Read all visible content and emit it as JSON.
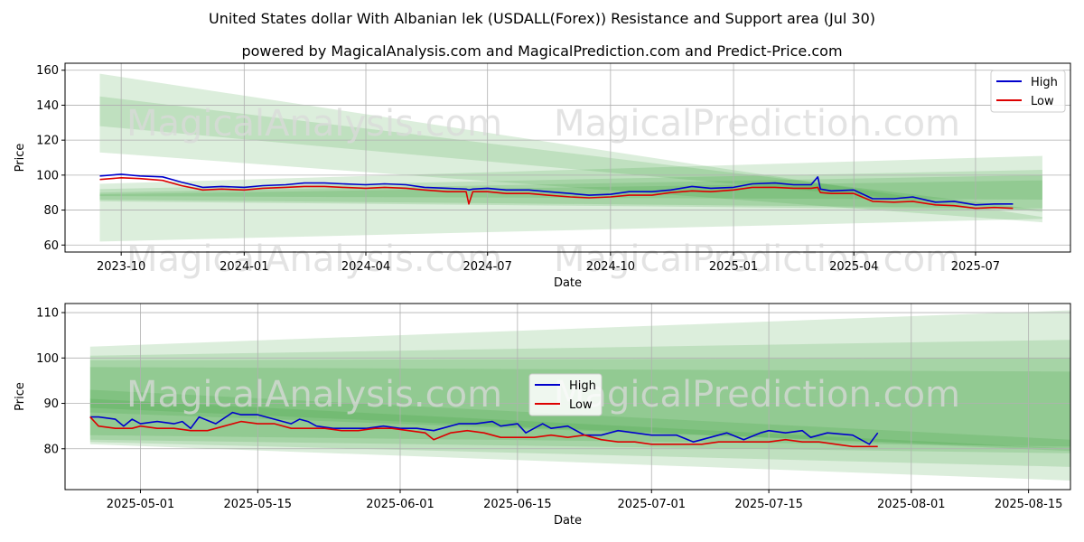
{
  "title": "United States dollar With Albanian lek (USDALL(Forex)) Resistance and Support area (Jul 30)",
  "subtitle": "powered by MagicalAnalysis.com and MagicalPrediction.com and Predict-Price.com",
  "watermarks": [
    "MagicalAnalysis.com",
    "MagicalPrediction.com"
  ],
  "colors": {
    "high": "#0000cc",
    "low": "#dd0000",
    "band": "#2e9a2e",
    "grid": "#b0b0b0",
    "watermark": "#d9d9d9"
  },
  "chart_data": [
    {
      "type": "line",
      "xlabel": "Date",
      "ylabel": "Price",
      "grid": true,
      "legend": {
        "placement": "top-right",
        "entries": [
          "High",
          "Low"
        ]
      },
      "xlim": [
        "2023-08-20",
        "2025-09-10"
      ],
      "ylim": [
        56,
        164
      ],
      "x_ticks": [
        {
          "date": "2023-10-01",
          "label": "2023-10"
        },
        {
          "date": "2024-01-01",
          "label": "2024-01"
        },
        {
          "date": "2024-04-01",
          "label": "2024-04"
        },
        {
          "date": "2024-07-01",
          "label": "2024-07"
        },
        {
          "date": "2024-10-01",
          "label": "2024-10"
        },
        {
          "date": "2025-01-01",
          "label": "2025-01"
        },
        {
          "date": "2025-04-01",
          "label": "2025-04"
        },
        {
          "date": "2025-07-01",
          "label": "2025-07"
        }
      ],
      "y_ticks": [
        60,
        80,
        100,
        120,
        140,
        160
      ],
      "series": [
        {
          "name": "High",
          "x": [
            "2023-09-15",
            "2023-10-01",
            "2023-10-15",
            "2023-11-01",
            "2023-11-15",
            "2023-12-01",
            "2023-12-15",
            "2024-01-01",
            "2024-01-15",
            "2024-02-01",
            "2024-02-15",
            "2024-03-01",
            "2024-03-15",
            "2024-04-01",
            "2024-04-15",
            "2024-05-01",
            "2024-05-15",
            "2024-06-01",
            "2024-06-15",
            "2024-06-17",
            "2024-06-20",
            "2024-07-01",
            "2024-07-15",
            "2024-08-01",
            "2024-08-15",
            "2024-09-01",
            "2024-09-15",
            "2024-10-01",
            "2024-10-15",
            "2024-11-01",
            "2024-11-15",
            "2024-12-01",
            "2024-12-15",
            "2025-01-01",
            "2025-01-15",
            "2025-02-01",
            "2025-02-15",
            "2025-02-28",
            "2025-03-05",
            "2025-03-07",
            "2025-03-15",
            "2025-04-01",
            "2025-04-15",
            "2025-05-01",
            "2025-05-15",
            "2025-06-01",
            "2025-06-15",
            "2025-07-01",
            "2025-07-15",
            "2025-07-29"
          ],
          "y": [
            99.5,
            100.5,
            99.5,
            99,
            96,
            93,
            93.5,
            93,
            94,
            94.5,
            95.5,
            95.5,
            95,
            94.5,
            95,
            94.5,
            93,
            92.5,
            92,
            91.5,
            92,
            92.5,
            91.5,
            91.5,
            90.5,
            89.5,
            88.5,
            89,
            90.5,
            90.5,
            91.5,
            93.5,
            92.5,
            93,
            95,
            95.5,
            94.5,
            94.5,
            99,
            92,
            91,
            91.5,
            86.5,
            86.5,
            87.5,
            84.5,
            85,
            83,
            83.5,
            83.5
          ]
        },
        {
          "name": "Low",
          "x": [
            "2023-09-15",
            "2023-10-01",
            "2023-10-15",
            "2023-11-01",
            "2023-11-15",
            "2023-12-01",
            "2023-12-15",
            "2024-01-01",
            "2024-01-15",
            "2024-02-01",
            "2024-02-15",
            "2024-03-01",
            "2024-03-15",
            "2024-04-01",
            "2024-04-15",
            "2024-05-01",
            "2024-05-15",
            "2024-06-01",
            "2024-06-15",
            "2024-06-17",
            "2024-06-20",
            "2024-07-01",
            "2024-07-15",
            "2024-08-01",
            "2024-08-15",
            "2024-09-01",
            "2024-09-15",
            "2024-10-01",
            "2024-10-15",
            "2024-11-01",
            "2024-11-15",
            "2024-12-01",
            "2024-12-15",
            "2025-01-01",
            "2025-01-15",
            "2025-02-01",
            "2025-02-15",
            "2025-02-28",
            "2025-03-05",
            "2025-03-07",
            "2025-03-15",
            "2025-04-01",
            "2025-04-15",
            "2025-05-01",
            "2025-05-15",
            "2025-06-01",
            "2025-06-15",
            "2025-07-01",
            "2025-07-15",
            "2025-07-29"
          ],
          "y": [
            97.5,
            98.5,
            98,
            97,
            94,
            91.5,
            92,
            91.5,
            92.5,
            93,
            93.5,
            93.5,
            93,
            92.5,
            93,
            92.5,
            91.5,
            90.5,
            90.5,
            83.5,
            90.5,
            90.5,
            89.5,
            89.5,
            88.5,
            87.5,
            87,
            87.5,
            88.5,
            88.5,
            90,
            91,
            90.5,
            91.5,
            93,
            93,
            92.5,
            92.5,
            93,
            90,
            89.5,
            89.5,
            85,
            84.5,
            85,
            83,
            82.5,
            81,
            81.5,
            81
          ]
        }
      ],
      "bands": [
        {
          "x": [
            "2023-09-15",
            "2025-08-20"
          ],
          "upper": [
            158,
            76
          ],
          "lower": [
            113,
            73
          ]
        },
        {
          "x": [
            "2023-09-15",
            "2025-08-20"
          ],
          "upper": [
            145,
            80
          ],
          "lower": [
            128,
            79
          ]
        },
        {
          "x": [
            "2023-09-15",
            "2025-08-20"
          ],
          "upper": [
            95,
            111
          ],
          "lower": [
            62,
            75
          ]
        },
        {
          "x": [
            "2023-09-15",
            "2025-08-20"
          ],
          "upper": [
            92,
            103
          ],
          "lower": [
            86,
            81
          ]
        },
        {
          "x": [
            "2023-09-15",
            "2025-08-20"
          ],
          "upper": [
            90,
            100
          ],
          "lower": [
            85,
            80
          ]
        },
        {
          "x": [
            "2023-09-15",
            "2025-08-20"
          ],
          "upper": [
            89,
            97
          ],
          "lower": [
            88,
            86
          ]
        }
      ]
    },
    {
      "type": "line",
      "xlabel": "Date",
      "ylabel": "Price",
      "grid": true,
      "legend": {
        "placement": "center",
        "entries": [
          "High",
          "Low"
        ]
      },
      "xlim": [
        "2025-04-22",
        "2025-08-20"
      ],
      "ylim": [
        71,
        112
      ],
      "x_ticks": [
        {
          "date": "2025-05-01",
          "label": "2025-05-01"
        },
        {
          "date": "2025-05-15",
          "label": "2025-05-15"
        },
        {
          "date": "2025-06-01",
          "label": "2025-06-01"
        },
        {
          "date": "2025-06-15",
          "label": "2025-06-15"
        },
        {
          "date": "2025-07-01",
          "label": "2025-07-01"
        },
        {
          "date": "2025-07-15",
          "label": "2025-07-15"
        },
        {
          "date": "2025-08-01",
          "label": "2025-08-01"
        },
        {
          "date": "2025-08-15",
          "label": "2025-08-15"
        }
      ],
      "y_ticks": [
        80,
        90,
        100,
        110
      ],
      "series": [
        {
          "name": "High",
          "x": [
            "2025-04-25",
            "2025-04-26",
            "2025-04-28",
            "2025-04-29",
            "2025-04-30",
            "2025-05-01",
            "2025-05-03",
            "2025-05-05",
            "2025-05-06",
            "2025-05-07",
            "2025-05-08",
            "2025-05-10",
            "2025-05-12",
            "2025-05-13",
            "2025-05-14",
            "2025-05-15",
            "2025-05-17",
            "2025-05-19",
            "2025-05-20",
            "2025-05-21",
            "2025-05-22",
            "2025-05-24",
            "2025-05-26",
            "2025-05-28",
            "2025-05-30",
            "2025-06-01",
            "2025-06-03",
            "2025-06-05",
            "2025-06-06",
            "2025-06-08",
            "2025-06-10",
            "2025-06-12",
            "2025-06-13",
            "2025-06-15",
            "2025-06-16",
            "2025-06-18",
            "2025-06-19",
            "2025-06-21",
            "2025-06-23",
            "2025-06-25",
            "2025-06-27",
            "2025-06-29",
            "2025-07-01",
            "2025-07-03",
            "2025-07-04",
            "2025-07-06",
            "2025-07-08",
            "2025-07-10",
            "2025-07-12",
            "2025-07-14",
            "2025-07-15",
            "2025-07-17",
            "2025-07-19",
            "2025-07-20",
            "2025-07-22",
            "2025-07-25",
            "2025-07-27",
            "2025-07-28"
          ],
          "y": [
            87,
            87,
            86.5,
            85,
            86.5,
            85.5,
            86,
            85.5,
            86,
            84.5,
            87,
            85.5,
            88,
            87.5,
            87.5,
            87.5,
            86.5,
            85.5,
            86.5,
            86,
            85,
            84.5,
            84.5,
            84.5,
            85,
            84.5,
            84.5,
            84,
            84.5,
            85.5,
            85.5,
            86,
            85,
            85.5,
            83.5,
            85.5,
            84.5,
            85,
            83,
            83,
            84,
            83.5,
            83,
            83,
            83,
            81.5,
            82.5,
            83.5,
            82,
            83.5,
            84,
            83.5,
            84,
            82.5,
            83.5,
            83,
            81,
            83.5
          ]
        },
        {
          "name": "Low",
          "x": [
            "2025-04-25",
            "2025-04-26",
            "2025-04-28",
            "2025-04-30",
            "2025-05-01",
            "2025-05-03",
            "2025-05-05",
            "2025-05-07",
            "2025-05-09",
            "2025-05-11",
            "2025-05-13",
            "2025-05-15",
            "2025-05-17",
            "2025-05-19",
            "2025-05-21",
            "2025-05-23",
            "2025-05-25",
            "2025-05-27",
            "2025-05-29",
            "2025-05-31",
            "2025-06-02",
            "2025-06-04",
            "2025-06-05",
            "2025-06-07",
            "2025-06-09",
            "2025-06-11",
            "2025-06-13",
            "2025-06-15",
            "2025-06-17",
            "2025-06-19",
            "2025-06-21",
            "2025-06-23",
            "2025-06-25",
            "2025-06-27",
            "2025-06-29",
            "2025-07-01",
            "2025-07-03",
            "2025-07-05",
            "2025-07-07",
            "2025-07-09",
            "2025-07-11",
            "2025-07-13",
            "2025-07-15",
            "2025-07-17",
            "2025-07-19",
            "2025-07-21",
            "2025-07-23",
            "2025-07-25",
            "2025-07-28"
          ],
          "y": [
            87,
            85,
            84.5,
            84.5,
            85,
            84.5,
            84.5,
            84,
            84,
            85,
            86,
            85.5,
            85.5,
            84.5,
            84.5,
            84.5,
            84,
            84,
            84.5,
            84.5,
            84,
            83.5,
            82,
            83.5,
            84,
            83.5,
            82.5,
            82.5,
            82.5,
            83,
            82.5,
            83,
            82,
            81.5,
            81.5,
            81,
            81,
            81,
            81,
            81.5,
            81.5,
            81.5,
            81.5,
            82,
            81.5,
            81.5,
            81,
            80.5,
            80.5
          ]
        }
      ],
      "bands": [
        {
          "x": [
            "2025-04-25",
            "2025-08-20"
          ],
          "upper": [
            102.5,
            110.5
          ],
          "lower": [
            81,
            73
          ]
        },
        {
          "x": [
            "2025-04-25",
            "2025-08-20"
          ],
          "upper": [
            100.5,
            104
          ],
          "lower": [
            81.5,
            76
          ]
        },
        {
          "x": [
            "2025-04-25",
            "2025-08-20"
          ],
          "upper": [
            99.5,
            100
          ],
          "lower": [
            82,
            79
          ]
        },
        {
          "x": [
            "2025-04-25",
            "2025-08-20"
          ],
          "upper": [
            98,
            97
          ],
          "lower": [
            83,
            80.5
          ]
        },
        {
          "x": [
            "2025-04-25",
            "2025-08-20"
          ],
          "upper": [
            93,
            82
          ],
          "lower": [
            88,
            80
          ]
        },
        {
          "x": [
            "2025-04-25",
            "2025-08-20"
          ],
          "upper": [
            91,
            80
          ],
          "lower": [
            89,
            79.5
          ]
        }
      ]
    }
  ]
}
